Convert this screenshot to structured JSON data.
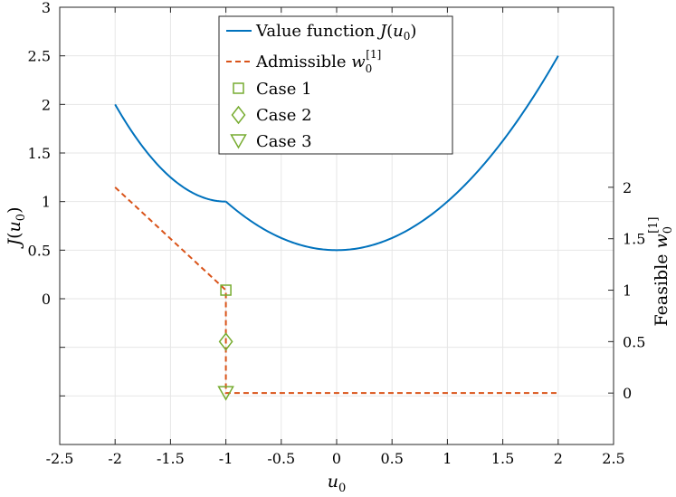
{
  "chart_data": {
    "type": "line",
    "grid": true,
    "xlim": [
      -2.5,
      2.5
    ],
    "xticks": [
      "-2.5",
      "-2",
      "-1.5",
      "-1",
      "-0.5",
      "0",
      "0.5",
      "1",
      "1.5",
      "2",
      "2.5"
    ],
    "xlabel": {
      "main": "u",
      "sub": "0"
    },
    "left_axis": {
      "ylim": [
        -1.5,
        3
      ],
      "ticks": [
        {
          "value": 0,
          "label": "0"
        },
        {
          "value": 0.5,
          "label": "0.5"
        },
        {
          "value": 1,
          "label": "1"
        },
        {
          "value": 1.5,
          "label": "1.5"
        },
        {
          "value": 2,
          "label": "2"
        },
        {
          "value": 2.5,
          "label": "2.5"
        },
        {
          "value": 3,
          "label": "3"
        }
      ],
      "label": {
        "main": "J",
        "open": "(",
        "var": "u",
        "sub": "0",
        "close": ")"
      }
    },
    "right_axis": {
      "ylim": [
        -0.5,
        3.75
      ],
      "ticks": [
        {
          "value": 0,
          "label": "0"
        },
        {
          "value": 0.5,
          "label": "0.5"
        },
        {
          "value": 1,
          "label": "1"
        },
        {
          "value": 1.5,
          "label": "1.5"
        },
        {
          "value": 2,
          "label": "2"
        }
      ],
      "label": {
        "prefix": "Feasible ",
        "var": "w",
        "sub": "0",
        "sup": "[1]"
      }
    },
    "series": [
      {
        "name": "Value function J(u0)",
        "axis": "left",
        "color": "#0072BD",
        "style": "solid",
        "x": [
          -2,
          -1.75,
          -1.5,
          -1.25,
          -1,
          -0.75,
          -0.5,
          -0.25,
          0,
          0.25,
          0.5,
          0.75,
          1,
          1.25,
          1.5,
          1.75,
          2
        ],
        "y": [
          2.0,
          1.5625,
          1.25,
          1.0625,
          1.0,
          0.78125,
          0.625,
          0.53125,
          0.5,
          0.53125,
          0.625,
          0.78125,
          1.0,
          1.28125,
          1.625,
          2.03125,
          2.5
        ]
      },
      {
        "name": "Admissible w0[1]",
        "axis": "right",
        "color": "#D95319",
        "style": "dashed",
        "x": [
          -2,
          -1,
          -1,
          2
        ],
        "y": [
          2,
          1,
          0,
          0
        ]
      },
      {
        "name": "Case 1",
        "axis": "right",
        "color": "#77AC30",
        "marker": "square",
        "x": [
          -1
        ],
        "y": [
          1
        ]
      },
      {
        "name": "Case 2",
        "axis": "right",
        "color": "#77AC30",
        "marker": "diamond",
        "x": [
          -1
        ],
        "y": [
          0.5
        ]
      },
      {
        "name": "Case 3",
        "axis": "right",
        "color": "#77AC30",
        "marker": "triangle-down",
        "x": [
          -1
        ],
        "y": [
          0
        ]
      }
    ],
    "legend": {
      "placement": "top-center",
      "entries": [
        {
          "key": "value",
          "text": "Value function ",
          "math": {
            "main": "J",
            "open": "(",
            "var": "u",
            "sub": "0",
            "close": ")"
          }
        },
        {
          "key": "admissible",
          "text": "Admissible ",
          "math": {
            "var": "w",
            "sub": "0",
            "sup": "[1]"
          }
        },
        {
          "key": "case1",
          "text": "Case 1"
        },
        {
          "key": "case2",
          "text": "Case 2"
        },
        {
          "key": "case3",
          "text": "Case 3"
        }
      ]
    }
  }
}
